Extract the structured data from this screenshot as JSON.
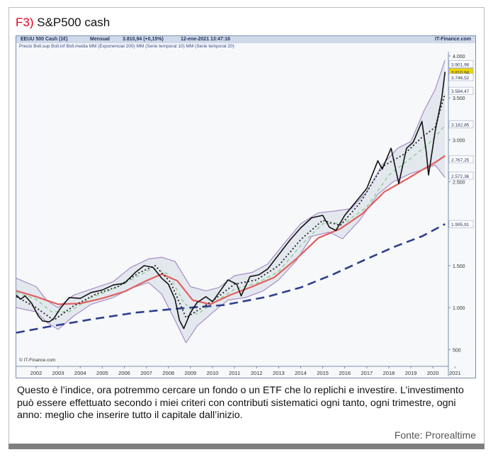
{
  "figure": {
    "number": "F3)",
    "title": "S&P500 cash"
  },
  "chart_header": {
    "instrument": "EEUU 500 Cash (1€)",
    "period": "Mensual",
    "last": "3.810,94 (+0,15%)",
    "datetime": "12-ene-2021 13:47:16",
    "brand": "IT-Finance.com"
  },
  "chart_legend": "Precio  Boll.sup  Boll.inf  Boll.media  MM (Exponencial 200)  MM (Serie temporal 10)  MM (Serie temporal 20)",
  "chart_watermark": "© IT-Finance.com",
  "caption": "Questo è l’indice, ora potremmo cercare un fondo o un ETF che lo replichi e investire. L’investimento può essere effettuato secondo i miei criteri con contributi sistematici ogni tanto, ogni trimestre, ogni anno: meglio che inserire tutto il capitale dall’inizio.",
  "source": "Fonte: Prorealtime",
  "colors": {
    "price": "#111111",
    "bollinger_bands": "#a98cc7",
    "bollinger_mid": "#7fc97f",
    "ema200": "#2e3f8f",
    "sma10": "#222222",
    "sma20": "#e06060",
    "last_label": "#f2d600"
  },
  "chart_data": {
    "type": "line",
    "xlabel": "",
    "ylabel": "",
    "x_ticks": [
      "2002",
      "2003",
      "2004",
      "2005",
      "2006",
      "2007",
      "2008",
      "2009",
      "2010",
      "2011",
      "2012",
      "2013",
      "2014",
      "2015",
      "2016",
      "2017",
      "2018",
      "2019",
      "2020",
      "2021"
    ],
    "y_ticks": [
      500,
      1000,
      1500,
      2000,
      2500,
      3000,
      3500,
      4000
    ],
    "y_tick_labels": [
      "500",
      "1.000",
      "1.500",
      "2.000",
      "2.500",
      "3.000",
      "3.500",
      "4.000"
    ],
    "ylim": [
      300,
      4050
    ],
    "xlim": [
      2001.6,
      2021.2
    ],
    "price_labels": [
      {
        "value": 3901.96,
        "text": "3.901,96"
      },
      {
        "value": 3810.94,
        "text": "3.810,94"
      },
      {
        "value": 3746.52,
        "text": "3.746,52"
      },
      {
        "value": 3584.47,
        "text": "3.584,47"
      },
      {
        "value": 3182.85,
        "text": "3.182,85"
      },
      {
        "value": 2767.25,
        "text": "2.767,25"
      },
      {
        "value": 2572.36,
        "text": "2.572,36"
      },
      {
        "value": 1995.91,
        "text": "1.995,91"
      }
    ],
    "series": [
      {
        "name": "Precio",
        "x": [
          2001.6,
          2001.8,
          2002.0,
          2002.3,
          2002.6,
          2002.8,
          2003.1,
          2003.3,
          2003.6,
          2004.0,
          2004.5,
          2005.0,
          2005.5,
          2006.0,
          2006.5,
          2007.0,
          2007.4,
          2007.8,
          2008.2,
          2008.5,
          2008.8,
          2009.0,
          2009.2,
          2009.5,
          2009.8,
          2010.2,
          2010.5,
          2010.8,
          2011.2,
          2011.6,
          2011.8,
          2012.2,
          2012.6,
          2013.0,
          2013.5,
          2014.0,
          2014.5,
          2015.0,
          2015.5,
          2015.8,
          2016.1,
          2016.5,
          2017.0,
          2017.5,
          2018.0,
          2018.2,
          2018.6,
          2018.95,
          2019.3,
          2019.6,
          2020.0,
          2020.2,
          2020.3,
          2020.6,
          2020.9,
          2021.05
        ],
        "values": [
          1150,
          1100,
          1140,
          1050,
          900,
          840,
          830,
          870,
          990,
          1120,
          1110,
          1180,
          1210,
          1270,
          1290,
          1420,
          1500,
          1480,
          1350,
          1280,
          1100,
          850,
          750,
          940,
          1060,
          1130,
          1070,
          1180,
          1330,
          1280,
          1140,
          1370,
          1390,
          1460,
          1630,
          1800,
          1950,
          2070,
          2100,
          1960,
          1920,
          2100,
          2260,
          2420,
          2750,
          2650,
          2900,
          2480,
          2900,
          2970,
          3220,
          2850,
          2580,
          3100,
          3500,
          3810
        ]
      },
      {
        "name": "Boll.sup",
        "x": [
          2001.6,
          2002.5,
          2003.0,
          2003.5,
          2004.2,
          2005.0,
          2006.0,
          2006.8,
          2007.6,
          2008.2,
          2008.8,
          2009.5,
          2010.2,
          2010.8,
          2011.5,
          2012.3,
          2013.0,
          2013.8,
          2014.5,
          2015.3,
          2016.0,
          2016.8,
          2017.5,
          2018.2,
          2018.9,
          2019.5,
          2020.1,
          2020.6,
          2021.05
        ],
        "values": [
          1350,
          1250,
          1080,
          1000,
          1150,
          1220,
          1310,
          1480,
          1580,
          1600,
          1550,
          1250,
          1200,
          1240,
          1380,
          1420,
          1520,
          1780,
          2000,
          2130,
          2150,
          2180,
          2380,
          2700,
          2900,
          2980,
          3350,
          3600,
          3950
        ]
      },
      {
        "name": "Boll.inf",
        "x": [
          2001.6,
          2002.5,
          2003.0,
          2003.5,
          2004.2,
          2005.0,
          2006.0,
          2006.8,
          2007.6,
          2008.2,
          2008.8,
          2009.3,
          2009.8,
          2010.5,
          2011.2,
          2012.0,
          2012.8,
          2013.5,
          2014.3,
          2015.0,
          2015.8,
          2016.4,
          2017.2,
          2018.0,
          2018.7,
          2019.5,
          2020.1,
          2020.6,
          2021.05
        ],
        "values": [
          1000,
          950,
          820,
          740,
          900,
          1040,
          1120,
          1230,
          1300,
          1160,
          850,
          580,
          780,
          940,
          1090,
          1120,
          1200,
          1330,
          1560,
          1850,
          1900,
          1820,
          2050,
          2350,
          2500,
          2600,
          2650,
          2700,
          2550
        ]
      },
      {
        "name": "Boll.media",
        "x": [
          2001.6,
          2002.5,
          2003.2,
          2004.0,
          2005.0,
          2006.0,
          2007.0,
          2007.8,
          2008.5,
          2009.2,
          2009.8,
          2010.5,
          2011.5,
          2012.5,
          2013.5,
          2014.5,
          2015.5,
          2016.5,
          2017.5,
          2018.5,
          2019.5,
          2020.3,
          2021.05
        ],
        "values": [
          1180,
          1100,
          950,
          950,
          1120,
          1220,
          1360,
          1470,
          1400,
          1060,
          920,
          1050,
          1220,
          1290,
          1430,
          1740,
          2000,
          2010,
          2200,
          2580,
          2780,
          2950,
          3170
        ]
      },
      {
        "name": "MM (Exponencial 200)",
        "x": [
          2001.6,
          2003.0,
          2005.0,
          2007.0,
          2009.0,
          2011.0,
          2013.0,
          2014.5,
          2016.0,
          2017.5,
          2018.8,
          2020.0,
          2021.05
        ],
        "values": [
          700,
          770,
          860,
          940,
          990,
          1030,
          1130,
          1240,
          1400,
          1580,
          1730,
          1850,
          1996
        ]
      },
      {
        "name": "MM (Serie temporal 10)",
        "x": [
          2001.6,
          2002.5,
          2003.3,
          2004.2,
          2005.2,
          2006.2,
          2007.2,
          2007.9,
          2008.6,
          2009.3,
          2009.9,
          2010.6,
          2011.5,
          2012.5,
          2013.5,
          2014.5,
          2015.5,
          2016.3,
          2017.2,
          2018.2,
          2019.2,
          2020.0,
          2020.6,
          2021.05
        ],
        "values": [
          1130,
          1000,
          850,
          1020,
          1160,
          1250,
          1420,
          1500,
          1300,
          880,
          980,
          1100,
          1280,
          1330,
          1500,
          1810,
          2040,
          1980,
          2250,
          2680,
          2830,
          3030,
          3150,
          3550
        ]
      },
      {
        "name": "MM (Serie temporal 20)",
        "x": [
          2001.6,
          2002.5,
          2003.5,
          2004.5,
          2005.5,
          2006.5,
          2007.5,
          2008.2,
          2008.9,
          2009.6,
          2010.4,
          2011.3,
          2012.3,
          2013.3,
          2014.3,
          2015.3,
          2016.3,
          2017.3,
          2018.3,
          2019.3,
          2020.0,
          2020.6,
          2021.05
        ],
        "values": [
          1200,
          1130,
          1040,
          1050,
          1110,
          1190,
          1320,
          1400,
          1320,
          1090,
          1040,
          1150,
          1250,
          1360,
          1580,
          1830,
          1940,
          2120,
          2380,
          2530,
          2640,
          2730,
          2810
        ]
      }
    ]
  }
}
